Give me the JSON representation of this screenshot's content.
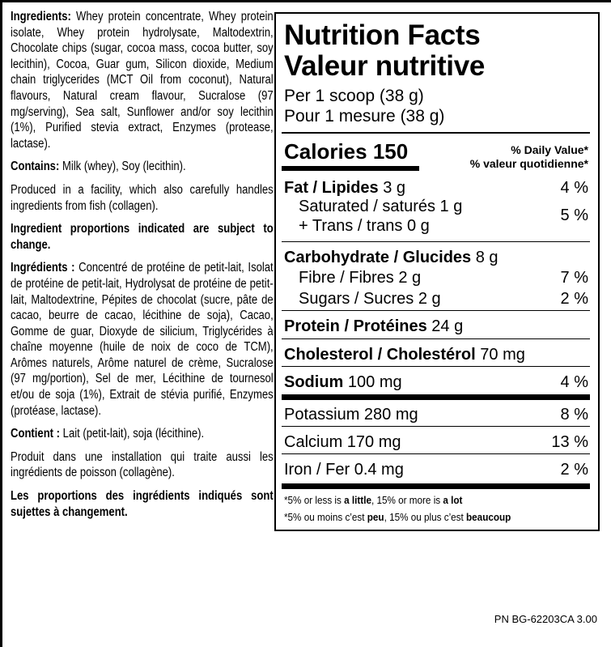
{
  "ingredients_en": {
    "label": "Ingredients:",
    "text": " Whey protein concentrate, Whey protein isolate, Whey protein hydrolysate, Maltodextrin, Chocolate chips (sugar, cocoa mass, cocoa butter, soy lecithin), Cocoa, Guar gum, Silicon dioxide, Medium chain triglycerides (MCT Oil from coconut), Natural flavours, Natural cream flavour, Sucralose (97 mg/serving), Sea salt, Sunflower and/or soy lecithin (1%), Purified stevia extract, Enzymes (protease, lactase).",
    "contains_label": "Contains:",
    "contains_text": " Milk (whey), Soy (lecithin).",
    "facility": "Produced in a facility, which also carefully handles ingredients from fish (collagen).",
    "notice": "Ingredient proportions indicated are subject to change."
  },
  "ingredients_fr": {
    "label": "Ingrédients :",
    "text": "  Concentré de protéine de petit-lait, Isolat de protéine de petit-lait, Hydrolysat de protéine de petit-lait, Maltodextrine, Pépites de chocolat (sucre, pâte de cacao, beurre de cacao, lécithine de soja), Cacao, Gomme de guar, Dioxyde de silicium, Triglycérides à chaîne moyenne (huile de noix de coco de TCM), Arômes naturels, Arôme naturel de crème, Sucralose (97 mg/portion), Sel de mer, Lécithine de tournesol et/ou de soja (1%), Extrait de stévia purifié, Enzymes (protéase, lactase).",
    "contains_label": "Contient :",
    "contains_text": " Lait (petit-lait), soja (lécithine).",
    "facility": "Produit dans une installation qui traite aussi les ingrédients de poisson (collagène).",
    "notice": "Les proportions des ingrédients indiqués sont sujettes à changement."
  },
  "panel": {
    "title_en": "Nutrition Facts",
    "title_fr": "Valeur nutritive",
    "serving_en": "Per 1 scoop (38 g)",
    "serving_fr": "Pour 1 mesure (38 g)",
    "calories_label": "Calories 150",
    "dv_en": "% Daily Value*",
    "dv_fr": "% valeur quotidienne*",
    "fat": {
      "label": "Fat / Lipides",
      "amount": " 3 g",
      "dv": "4 %"
    },
    "saturated": {
      "label": "Saturated / saturés 1 g"
    },
    "trans": {
      "label": "+ Trans / trans 0 g",
      "dv": "5 %"
    },
    "carb": {
      "label": "Carbohydrate / Glucides",
      "amount": " 8 g"
    },
    "fibre": {
      "label": "Fibre / Fibres 2 g",
      "dv": "7 %"
    },
    "sugars": {
      "label": "Sugars / Sucres 2 g",
      "dv": "2 %"
    },
    "protein": {
      "label": "Protein / Protéines",
      "amount": " 24 g"
    },
    "cholesterol": {
      "label": "Cholesterol / Cholestérol",
      "amount": " 70 mg"
    },
    "sodium": {
      "label": "Sodium",
      "amount": " 100 mg",
      "dv": "4 %"
    },
    "potassium": {
      "label": "Potassium 280 mg",
      "dv": "8 %"
    },
    "calcium": {
      "label": "Calcium 170 mg",
      "dv": "13 %"
    },
    "iron": {
      "label": "Iron / Fer 0.4 mg",
      "dv": "2 %"
    },
    "foot_en": {
      "a": "*5% or less is ",
      "b": "a little",
      "c": ", 15% or more is ",
      "d": "a lot"
    },
    "foot_fr": {
      "a": "*5% ou moins c’est ",
      "b": "peu",
      "c": ", 15% ou plus c’est ",
      "d": "beaucoup"
    }
  },
  "part_number": "PN BG-62203CA 3.00"
}
